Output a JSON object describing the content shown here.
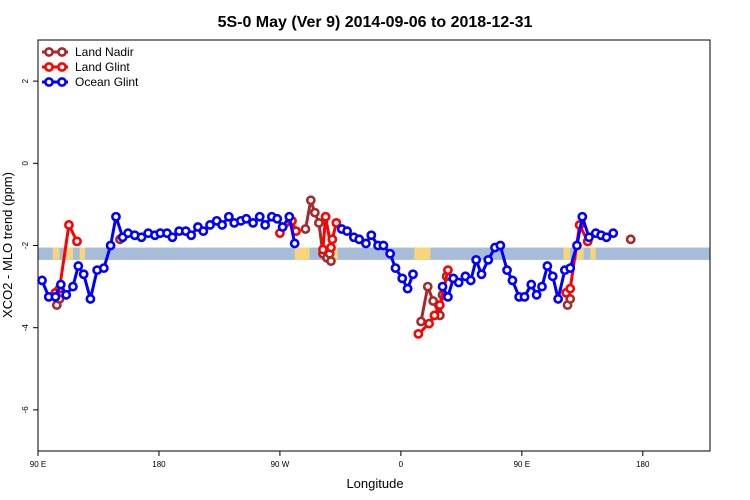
{
  "chart_data": {
    "type": "line",
    "title": "5S-0 May (Ver 9)   2014-09-06 to 2018-12-31",
    "xlabel": "Longitude",
    "ylabel": "XCO2 - MLO trend (ppm)",
    "xlim": [
      90,
      590
    ],
    "ylim": [
      -7,
      3
    ],
    "x_ticks": [
      {
        "value": 90,
        "label": "90 E"
      },
      {
        "value": 180,
        "label": "180"
      },
      {
        "value": 270,
        "label": "90 W"
      },
      {
        "value": 360,
        "label": "0"
      },
      {
        "value": 450,
        "label": "90 E"
      },
      {
        "value": 540,
        "label": "180"
      }
    ],
    "y_ticks": [
      {
        "value": 2,
        "label": "2"
      },
      {
        "value": 0,
        "label": "0"
      },
      {
        "value": -2,
        "label": "-2"
      },
      {
        "value": -4,
        "label": "-4"
      },
      {
        "value": -6,
        "label": "-6"
      }
    ],
    "legend_position": "top-left",
    "background_band": {
      "y_range": [
        -2.35,
        -2.05
      ],
      "ocean_color": "#a7bcd9",
      "land_color": "#f7d57a",
      "land_x_ranges": [
        [
          101,
          106
        ],
        [
          111,
          116
        ],
        [
          121,
          125
        ],
        [
          281,
          292
        ],
        [
          308,
          313
        ],
        [
          370,
          382
        ],
        [
          481,
          486
        ],
        [
          491,
          496
        ],
        [
          501,
          505
        ]
      ]
    },
    "series": [
      {
        "name": "Land Nadir",
        "color": "#a52a2a",
        "points": [
          [
            104,
            -3.45
          ],
          [
            106,
            -3.3
          ],
          [
            151,
            -1.85
          ],
          [
            289,
            -1.6
          ],
          [
            293,
            -0.9
          ],
          [
            296,
            -1.2
          ],
          [
            299,
            -1.45
          ],
          [
            302,
            -2.2
          ],
          [
            305,
            -2.3
          ],
          [
            307,
            -2.2
          ],
          [
            308,
            -2.38
          ],
          [
            375,
            -3.85
          ],
          [
            380,
            -3.0
          ],
          [
            384,
            -3.35
          ],
          [
            389,
            -3.7
          ],
          [
            391,
            -3.2
          ],
          [
            394,
            -2.75
          ],
          [
            484,
            -3.45
          ],
          [
            486,
            -3.3
          ],
          [
            531,
            -1.85
          ]
        ]
      },
      {
        "name": "Land Glint",
        "color": "#ff0000",
        "points": [
          [
            103,
            -3.15
          ],
          [
            106,
            -3.05
          ],
          [
            113,
            -1.5
          ],
          [
            119,
            -1.9
          ],
          [
            270,
            -1.7
          ],
          [
            279,
            -1.4
          ],
          [
            282,
            -1.65
          ],
          [
            302,
            -2.1
          ],
          [
            304,
            -1.3
          ],
          [
            308,
            -2.05
          ],
          [
            309,
            -1.85
          ],
          [
            312,
            -1.45
          ],
          [
            373,
            -4.15
          ],
          [
            381,
            -3.9
          ],
          [
            385,
            -3.7
          ],
          [
            389,
            -3.45
          ],
          [
            395,
            -2.6
          ],
          [
            483,
            -3.15
          ],
          [
            486,
            -3.05
          ],
          [
            493,
            -1.5
          ],
          [
            499,
            -1.9
          ]
        ]
      },
      {
        "name": "Ocean Glint",
        "color": "#0000ff",
        "points": [
          [
            93,
            -2.85
          ],
          [
            98,
            -3.25
          ],
          [
            103,
            -3.25
          ],
          [
            107,
            -2.95
          ],
          [
            111,
            -3.2
          ],
          [
            116,
            -3.0
          ],
          [
            120,
            -2.5
          ],
          [
            124,
            -2.7
          ],
          [
            129,
            -3.3
          ],
          [
            134,
            -2.6
          ],
          [
            139,
            -2.55
          ],
          [
            144,
            -2.0
          ],
          [
            148,
            -1.3
          ],
          [
            153,
            -1.8
          ],
          [
            157,
            -1.7
          ],
          [
            162,
            -1.75
          ],
          [
            167,
            -1.8
          ],
          [
            172,
            -1.7
          ],
          [
            177,
            -1.75
          ],
          [
            181,
            -1.7
          ],
          [
            186,
            -1.7
          ],
          [
            190,
            -1.8
          ],
          [
            195,
            -1.65
          ],
          [
            200,
            -1.65
          ],
          [
            204,
            -1.75
          ],
          [
            209,
            -1.55
          ],
          [
            213,
            -1.65
          ],
          [
            218,
            -1.5
          ],
          [
            223,
            -1.4
          ],
          [
            227,
            -1.5
          ],
          [
            232,
            -1.3
          ],
          [
            236,
            -1.45
          ],
          [
            241,
            -1.4
          ],
          [
            245,
            -1.35
          ],
          [
            250,
            -1.45
          ],
          [
            255,
            -1.3
          ],
          [
            259,
            -1.5
          ],
          [
            264,
            -1.3
          ],
          [
            268,
            -1.35
          ],
          [
            272,
            -1.55
          ],
          [
            277,
            -1.3
          ],
          [
            281,
            -1.95
          ],
          [
            316,
            -1.6
          ],
          [
            320,
            -1.65
          ],
          [
            325,
            -1.8
          ],
          [
            329,
            -1.85
          ],
          [
            334,
            -1.95
          ],
          [
            338,
            -1.75
          ],
          [
            343,
            -2.0
          ],
          [
            347,
            -2.0
          ],
          [
            352,
            -2.2
          ],
          [
            356,
            -2.55
          ],
          [
            361,
            -2.8
          ],
          [
            365,
            -3.05
          ],
          [
            369,
            -2.7
          ],
          [
            391,
            -3.0
          ],
          [
            395,
            -3.25
          ],
          [
            399,
            -2.8
          ],
          [
            403,
            -2.9
          ],
          [
            408,
            -2.75
          ],
          [
            412,
            -2.85
          ],
          [
            416,
            -2.35
          ],
          [
            420,
            -2.7
          ],
          [
            425,
            -2.35
          ],
          [
            430,
            -2.05
          ],
          [
            434,
            -2.0
          ],
          [
            439,
            -2.6
          ],
          [
            443,
            -2.85
          ],
          [
            448,
            -3.25
          ],
          [
            452,
            -3.25
          ],
          [
            457,
            -2.95
          ],
          [
            461,
            -3.2
          ],
          [
            465,
            -3.0
          ],
          [
            469,
            -2.5
          ],
          [
            473,
            -2.75
          ],
          [
            477,
            -3.3
          ],
          [
            482,
            -2.6
          ],
          [
            486,
            -2.55
          ],
          [
            491,
            -2.0
          ],
          [
            495,
            -1.3
          ],
          [
            500,
            -1.8
          ],
          [
            505,
            -1.7
          ],
          [
            509,
            -1.75
          ],
          [
            513,
            -1.8
          ],
          [
            518,
            -1.7
          ]
        ]
      }
    ]
  }
}
